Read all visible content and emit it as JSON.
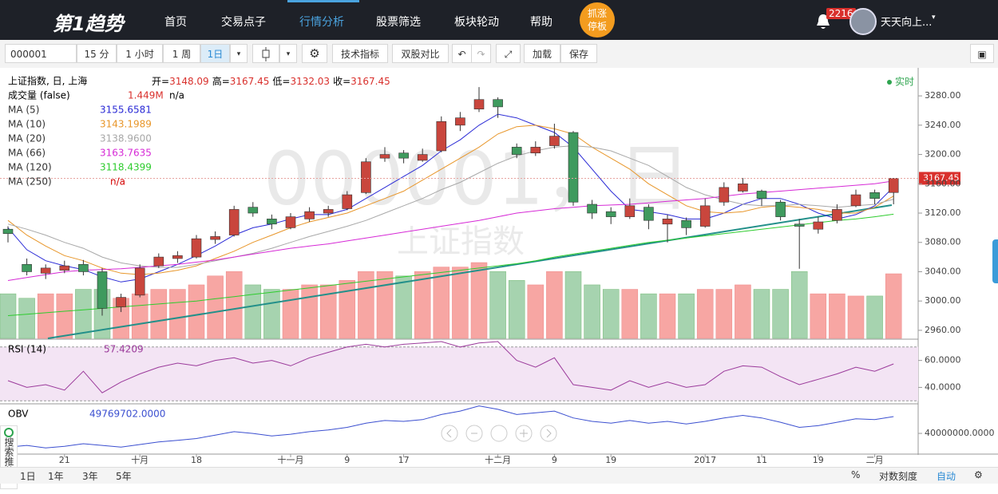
{
  "nav": {
    "logo": "第1趋势",
    "items": [
      "首页",
      "交易点子",
      "行情分析",
      "股票筛选",
      "板块轮动",
      "帮助"
    ],
    "promo": [
      "抓涨",
      "停板"
    ],
    "notifications": 2216,
    "user": "天天向上..."
  },
  "toolbar": {
    "symbol": "000001",
    "intervals": [
      "15 分",
      "1 小时",
      "1 周",
      "1日"
    ],
    "buttons": [
      "技术指标",
      "双股对比",
      "加载",
      "保存"
    ]
  },
  "bottom_bar": {
    "ranges": [
      "1日",
      "1年",
      "3年",
      "5年"
    ],
    "options": [
      "%",
      "对数刻度",
      "自动"
    ]
  },
  "side_tab": "搜索推荐",
  "chart_data": {
    "type": "candlestick",
    "title": "上证指数, 日, 上海",
    "realtime": "实时",
    "watermark": [
      "000001，日",
      "上证指数"
    ],
    "ohlc_labels": {
      "open": "开=",
      "high": "高=",
      "low": "低=",
      "close": "收="
    },
    "categories": [
      null,
      null,
      null,
      "21",
      null,
      null,
      null,
      "十月",
      null,
      null,
      "18",
      null,
      null,
      null,
      null,
      "十一月",
      null,
      null,
      "9",
      null,
      null,
      "17",
      null,
      null,
      null,
      null,
      "十二月",
      null,
      null,
      "9",
      null,
      null,
      "19",
      null,
      null,
      null,
      null,
      "2017",
      null,
      null,
      "11",
      null,
      null,
      "19",
      null,
      null,
      "二月",
      null
    ],
    "up_color": "#c9463d",
    "down_color": "#3f9a5e",
    "volume_up_color": "#f7a6a3",
    "volume_down_color": "#a6d3af",
    "candles": {
      "open": [
        3098,
        3050,
        3038,
        3042,
        3050,
        3040,
        2992,
        3008,
        3048,
        3058,
        3060,
        3084,
        3090,
        3128,
        3112,
        3100,
        3112,
        3120,
        3126,
        3148,
        3195,
        3202,
        3192,
        3205,
        3240,
        3262,
        3275,
        3210,
        3202,
        3212,
        3230,
        3132,
        3122,
        3115,
        3128,
        3105,
        3110,
        3102,
        3135,
        3150,
        3150,
        3135,
        3105,
        3098,
        3110,
        3130,
        3148,
        3148.09
      ],
      "high": [
        3102,
        3058,
        3050,
        3055,
        3056,
        3045,
        3010,
        3050,
        3065,
        3068,
        3090,
        3095,
        3130,
        3135,
        3118,
        3120,
        3128,
        3130,
        3150,
        3195,
        3210,
        3206,
        3208,
        3252,
        3258,
        3292,
        3278,
        3215,
        3218,
        3242,
        3232,
        3138,
        3128,
        3140,
        3132,
        3118,
        3114,
        3140,
        3162,
        3168,
        3152,
        3138,
        3112,
        3115,
        3132,
        3152,
        3152,
        3167.45
      ],
      "low": [
        3080,
        3035,
        3030,
        3038,
        3035,
        2980,
        2985,
        3005,
        3045,
        3052,
        3058,
        3078,
        3088,
        3115,
        3098,
        3098,
        3108,
        3115,
        3124,
        3146,
        3190,
        3188,
        3190,
        3203,
        3232,
        3258,
        3250,
        3195,
        3198,
        3208,
        3130,
        3112,
        3105,
        3112,
        3098,
        3080,
        3090,
        3100,
        3130,
        3148,
        3130,
        3110,
        3044,
        3092,
        3106,
        3128,
        3132,
        3132.03
      ],
      "close": [
        3092,
        3040,
        3045,
        3048,
        3040,
        2990,
        3005,
        3045,
        3060,
        3062,
        3085,
        3088,
        3125,
        3120,
        3105,
        3115,
        3122,
        3125,
        3145,
        3190,
        3200,
        3195,
        3200,
        3245,
        3250,
        3275,
        3265,
        3200,
        3210,
        3225,
        3135,
        3120,
        3115,
        3130,
        3110,
        3112,
        3100,
        3130,
        3155,
        3160,
        3140,
        3115,
        3102,
        3108,
        3125,
        3145,
        3140,
        3167.45
      ]
    },
    "ylim": [
      2949,
      3315
    ],
    "yticks": [
      {
        "value": 2960,
        "label": "2960.00"
      },
      {
        "value": 3000,
        "label": "3000.00"
      },
      {
        "value": 3040,
        "label": "3040.00"
      },
      {
        "value": 3080,
        "label": "3080.00"
      },
      {
        "value": 3120,
        "label": "3120.00"
      },
      {
        "value": 3160,
        "label": "3160.00"
      },
      {
        "value": 3200,
        "label": "3200.00"
      },
      {
        "value": 3240,
        "label": "3240.00"
      },
      {
        "value": 3280,
        "label": "3280.00"
      }
    ],
    "volume": {
      "name": "成交量 (false)",
      "legend_value": "1.449M",
      "extra": "n/a",
      "values": [
        1.0,
        0.9,
        1.0,
        1.0,
        1.1,
        1.1,
        0.9,
        1.0,
        1.1,
        1.1,
        1.2,
        1.4,
        1.5,
        1.2,
        1.1,
        1.1,
        1.2,
        1.2,
        1.3,
        1.5,
        1.5,
        1.4,
        1.5,
        1.6,
        1.6,
        1.7,
        1.5,
        1.3,
        1.2,
        1.5,
        1.5,
        1.2,
        1.1,
        1.1,
        1.0,
        1.0,
        1.0,
        1.1,
        1.1,
        1.2,
        1.1,
        1.1,
        1.5,
        1.0,
        1.0,
        0.95,
        0.95,
        1.449
      ]
    },
    "ma": [
      {
        "name": "MA (5)",
        "color": "#2b2bd6",
        "values": [
          3100,
          3070,
          3055,
          3048,
          3043,
          3033,
          3026,
          3030,
          3040,
          3050,
          3062,
          3075,
          3090,
          3100,
          3105,
          3112,
          3118,
          3118,
          3125,
          3140,
          3155,
          3170,
          3185,
          3205,
          3220,
          3240,
          3255,
          3250,
          3240,
          3230,
          3210,
          3180,
          3150,
          3125,
          3122,
          3118,
          3112,
          3112,
          3120,
          3132,
          3140,
          3140,
          3132,
          3120,
          3112,
          3118,
          3130,
          3155.6581
        ]
      },
      {
        "name": "MA (10)",
        "color": "#e8962a",
        "values": [
          3110,
          3090,
          3075,
          3062,
          3055,
          3045,
          3038,
          3036,
          3038,
          3042,
          3048,
          3058,
          3068,
          3080,
          3090,
          3100,
          3108,
          3114,
          3120,
          3130,
          3140,
          3150,
          3165,
          3180,
          3195,
          3210,
          3228,
          3238,
          3240,
          3235,
          3228,
          3210,
          3195,
          3180,
          3160,
          3145,
          3130,
          3122,
          3120,
          3122,
          3128,
          3130,
          3128,
          3125,
          3120,
          3120,
          3128,
          3143.1989
        ]
      },
      {
        "name": "MA (20)",
        "color": "#a8a8a8",
        "legend_value": "3138.9600",
        "values": [
          3105,
          3098,
          3090,
          3080,
          3072,
          3060,
          3052,
          3048,
          3046,
          3046,
          3050,
          3055,
          3060,
          3065,
          3072,
          3080,
          3088,
          3095,
          3102,
          3110,
          3120,
          3130,
          3140,
          3152,
          3162,
          3175,
          3188,
          3198,
          3205,
          3210,
          3212,
          3210,
          3205,
          3195,
          3185,
          3170,
          3155,
          3145,
          3138,
          3132,
          3130,
          3130,
          3132,
          3130,
          3128,
          3130,
          3132,
          3138.96
        ]
      },
      {
        "name": "MA (66)",
        "color": "#d62ad6",
        "values": [
          3028,
          3032,
          3036,
          3040,
          3042,
          3043,
          3044,
          3046,
          3048,
          3050,
          3053,
          3056,
          3060,
          3064,
          3068,
          3072,
          3075,
          3078,
          3082,
          3086,
          3090,
          3094,
          3098,
          3102,
          3106,
          3110,
          3115,
          3120,
          3123,
          3126,
          3128,
          3130,
          3131,
          3132,
          3134,
          3136,
          3138,
          3140,
          3143,
          3146,
          3148,
          3150,
          3152,
          3154,
          3156,
          3158,
          3160,
          3163.7635
        ]
      },
      {
        "name": "MA (120)",
        "color": "#2ecc2e",
        "values": [
          2980,
          2982,
          2984,
          2986,
          2988,
          2990,
          2992,
          2994,
          2996,
          2998,
          3000,
          3003,
          3006,
          3009,
          3012,
          3015,
          3018,
          3021,
          3024,
          3027,
          3030,
          3033,
          3036,
          3039,
          3042,
          3045,
          3048,
          3051,
          3055,
          3060,
          3064,
          3068,
          3072,
          3076,
          3080,
          3083,
          3086,
          3089,
          3092,
          3095,
          3098,
          3101,
          3104,
          3107,
          3110,
          3112,
          3115,
          3118.4399
        ]
      },
      {
        "name": "MA (250)",
        "color": "#d40000",
        "legend_value": "n/a"
      }
    ],
    "rsi": {
      "name": "RSI (14)",
      "color": "#9b3a9b",
      "band": [
        30,
        70
      ],
      "ylim": [
        29,
        74
      ],
      "yticks": [
        {
          "value": 40,
          "label": "40.0000"
        },
        {
          "value": 60,
          "label": "60.0000"
        }
      ],
      "values": [
        45,
        40,
        42,
        38,
        52,
        36,
        44,
        50,
        55,
        58,
        56,
        60,
        62,
        58,
        60,
        56,
        62,
        66,
        70,
        72,
        70,
        72,
        73,
        74,
        70,
        73,
        74,
        60,
        55,
        62,
        42,
        40,
        38,
        45,
        40,
        44,
        40,
        42,
        52,
        56,
        55,
        48,
        42,
        46,
        50,
        55,
        52,
        57.4209
      ]
    },
    "obv": {
      "name": "OBV",
      "color": "#3b4fd0",
      "legend_value": "49769702.0000",
      "ylim": [
        28400000,
        56300000
      ],
      "yticks": [
        {
          "value": 40000000,
          "label": "40000000.0000"
        }
      ],
      "values": [
        32000000,
        33000000,
        31500000,
        32500000,
        34000000,
        33000000,
        32000000,
        33500000,
        35000000,
        36000000,
        37000000,
        39000000,
        41000000,
        40000000,
        38500000,
        39500000,
        41000000,
        42000000,
        43500000,
        46000000,
        47500000,
        47000000,
        48000000,
        51000000,
        53000000,
        56000000,
        54000000,
        51000000,
        52000000,
        53000000,
        49000000,
        47000000,
        46000000,
        47500000,
        46000000,
        47000000,
        45500000,
        47000000,
        49000000,
        50500000,
        49000000,
        46500000,
        43500000,
        44500000,
        46500000,
        48500000,
        48000000,
        49769702
      ]
    }
  }
}
